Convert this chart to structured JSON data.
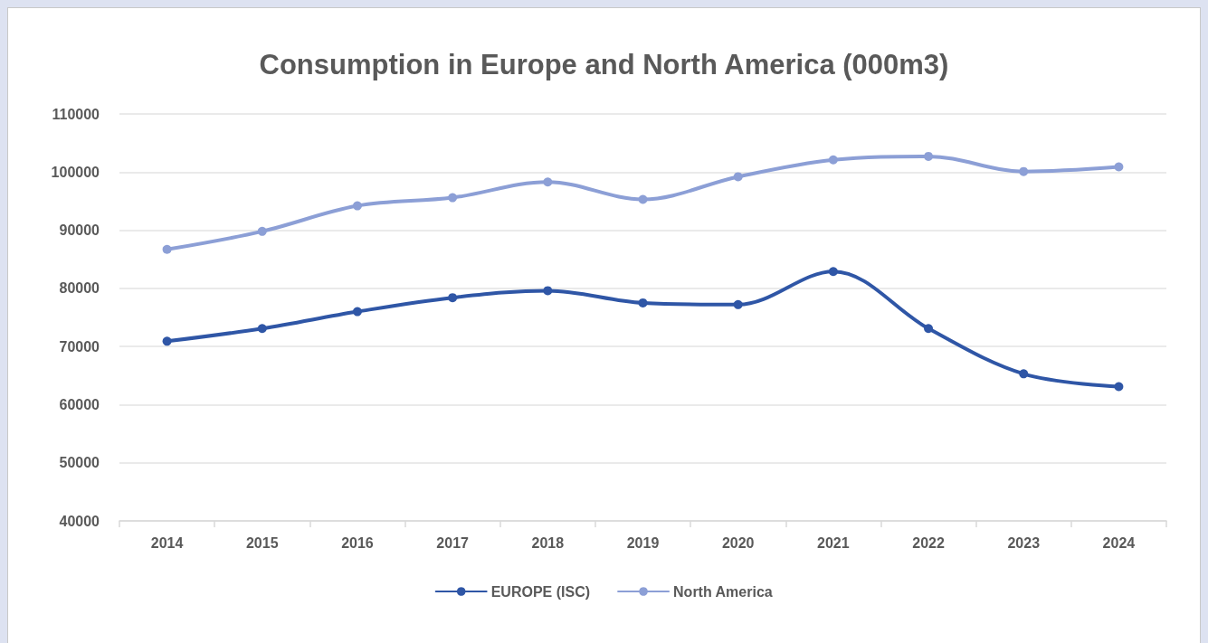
{
  "chart_data": {
    "type": "line",
    "title": "Consumption in Europe and North America (000m3)",
    "categories": [
      "2014",
      "2015",
      "2016",
      "2017",
      "2018",
      "2019",
      "2020",
      "2021",
      "2022",
      "2023",
      "2024"
    ],
    "series": [
      {
        "name": "EUROPE (ISC)",
        "color": "#2f56a6",
        "values": [
          70900,
          73100,
          76000,
          78400,
          79600,
          77500,
          77200,
          82900,
          73100,
          65300,
          63100
        ]
      },
      {
        "name": "North America",
        "color": "#8c9fd6",
        "values": [
          86700,
          89800,
          94200,
          95600,
          98300,
          95300,
          99200,
          102100,
          102700,
          100100,
          100900
        ]
      }
    ],
    "ylim": [
      40000,
      110000
    ],
    "yticks": [
      40000,
      50000,
      60000,
      70000,
      80000,
      90000,
      100000,
      110000
    ],
    "grid": "y",
    "legend": "bottom",
    "marker": "circle",
    "line_style": "solid"
  }
}
